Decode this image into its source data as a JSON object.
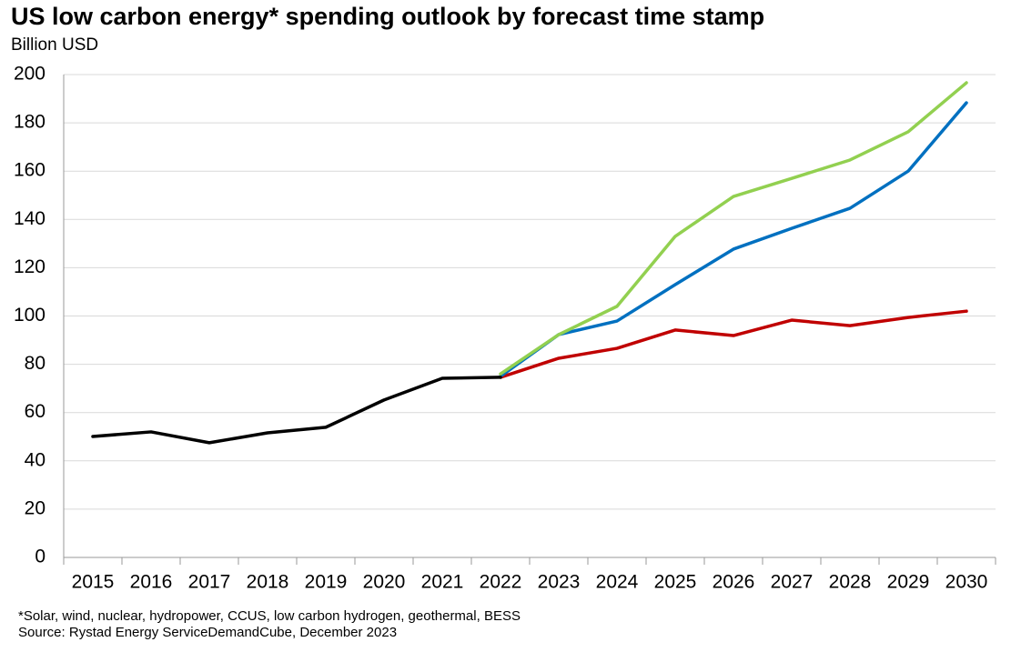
{
  "chart_data": {
    "type": "line",
    "title": "US low carbon energy* spending outlook by forecast time stamp",
    "subtitle": "Billion USD",
    "footnotes": [
      "*Solar, wind, nuclear, hydropower, CCUS, low carbon hydrogen, geothermal, BESS",
      "Source: Rystad Energy ServiceDemandCube, December 2023"
    ],
    "categories": [
      "2015",
      "2016",
      "2017",
      "2018",
      "2019",
      "2020",
      "2021",
      "2022",
      "2023",
      "2024",
      "2025",
      "2026",
      "2027",
      "2028",
      "2029",
      "2030"
    ],
    "series": [
      {
        "color": "#c00000",
        "values": [
          null,
          null,
          null,
          null,
          null,
          null,
          null,
          74.6,
          82.5,
          86.6,
          94.2,
          91.9,
          98.3,
          96,
          99.4,
          102
        ]
      },
      {
        "color": "#0070c0",
        "values": [
          null,
          null,
          null,
          null,
          null,
          null,
          null,
          75,
          92.3,
          97.9,
          113,
          127.7,
          136.3,
          144.6,
          160,
          188.3
        ]
      },
      {
        "color": "#92d050",
        "values": [
          null,
          null,
          null,
          null,
          null,
          null,
          null,
          76,
          92.3,
          104,
          133,
          149.5,
          157,
          164.6,
          176.3,
          196.6
        ]
      },
      {
        "color": "#000000",
        "values": [
          50.1,
          52,
          47.5,
          51.6,
          53.9,
          65.2,
          74.2,
          74.6,
          null,
          null,
          null,
          null,
          null,
          null,
          null,
          null
        ]
      }
    ],
    "ylim": [
      0,
      200
    ],
    "yticks": [
      0,
      20,
      40,
      60,
      80,
      100,
      120,
      140,
      160,
      180,
      200
    ],
    "grid": true
  }
}
